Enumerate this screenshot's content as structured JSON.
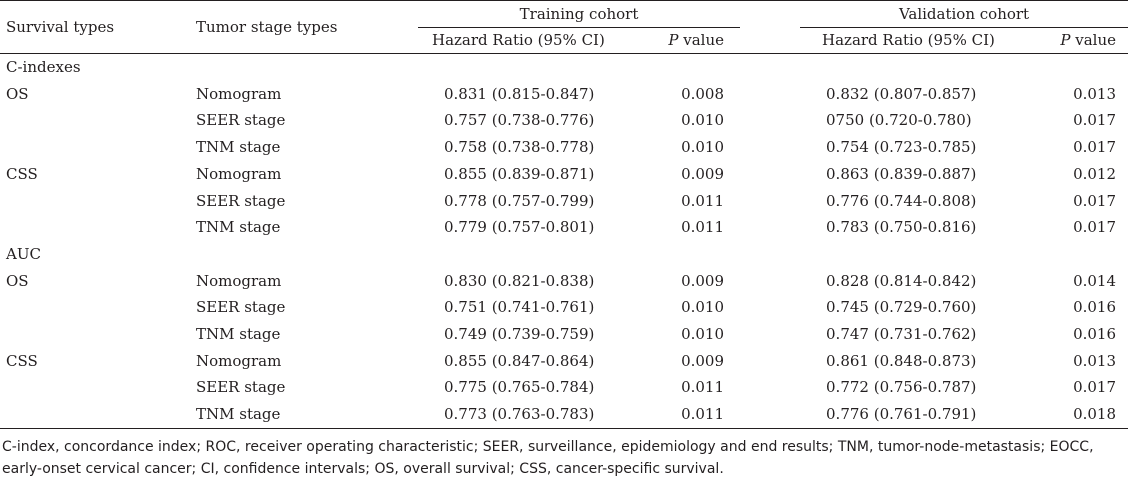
{
  "header": {
    "col_survival": "Survival types",
    "col_stage": "Tumor stage types",
    "training": "Training cohort",
    "validation": "Validation cohort",
    "hr": "Hazard Ratio (95% CI)",
    "p_italic": "P",
    "p_rest": " value"
  },
  "sections": [
    {
      "label": "C-indexes",
      "groups": [
        {
          "survival": "OS",
          "rows": [
            {
              "stage": "Nomogram",
              "t_hr": "0.831 (0.815-0.847)",
              "t_p": "0.008",
              "v_hr": "0.832 (0.807-0.857)",
              "v_p": "0.013"
            },
            {
              "stage": "SEER stage",
              "t_hr": "0.757 (0.738-0.776)",
              "t_p": "0.010",
              "v_hr": "0750 (0.720-0.780)",
              "v_p": "0.017"
            },
            {
              "stage": "TNM stage",
              "t_hr": "0.758 (0.738-0.778)",
              "t_p": "0.010",
              "v_hr": "0.754 (0.723-0.785)",
              "v_p": "0.017"
            }
          ]
        },
        {
          "survival": "CSS",
          "rows": [
            {
              "stage": "Nomogram",
              "t_hr": "0.855 (0.839-0.871)",
              "t_p": "0.009",
              "v_hr": "0.863 (0.839-0.887)",
              "v_p": "0.012"
            },
            {
              "stage": "SEER stage",
              "t_hr": "0.778 (0.757-0.799)",
              "t_p": "0.011",
              "v_hr": "0.776 (0.744-0.808)",
              "v_p": "0.017"
            },
            {
              "stage": "TNM stage",
              "t_hr": "0.779 (0.757-0.801)",
              "t_p": "0.011",
              "v_hr": "0.783 (0.750-0.816)",
              "v_p": "0.017"
            }
          ]
        }
      ]
    },
    {
      "label": "AUC",
      "groups": [
        {
          "survival": "OS",
          "rows": [
            {
              "stage": "Nomogram",
              "t_hr": "0.830 (0.821-0.838)",
              "t_p": "0.009",
              "v_hr": "0.828 (0.814-0.842)",
              "v_p": "0.014"
            },
            {
              "stage": "SEER stage",
              "t_hr": "0.751 (0.741-0.761)",
              "t_p": "0.010",
              "v_hr": "0.745 (0.729-0.760)",
              "v_p": "0.016"
            },
            {
              "stage": "TNM stage",
              "t_hr": "0.749 (0.739-0.759)",
              "t_p": "0.010",
              "v_hr": "0.747 (0.731-0.762)",
              "v_p": "0.016"
            }
          ]
        },
        {
          "survival": "CSS",
          "rows": [
            {
              "stage": "Nomogram",
              "t_hr": "0.855 (0.847-0.864)",
              "t_p": "0.009",
              "v_hr": "0.861 (0.848-0.873)",
              "v_p": "0.013"
            },
            {
              "stage": "SEER stage",
              "t_hr": "0.775 (0.765-0.784)",
              "t_p": "0.011",
              "v_hr": "0.772 (0.756-0.787)",
              "v_p": "0.017"
            },
            {
              "stage": "TNM stage",
              "t_hr": "0.773 (0.763-0.783)",
              "t_p": "0.011",
              "v_hr": "0.776 (0.761-0.791)",
              "v_p": "0.018"
            }
          ]
        }
      ]
    }
  ],
  "footnote": "C-index, concordance index; ROC, receiver operating characteristic; SEER, surveillance, epidemiology and end results; TNM, tumor-node-metastasis; EOCC, early-onset cervical cancer; CI, confidence intervals; OS, overall survival; CSS, cancer-specific survival."
}
